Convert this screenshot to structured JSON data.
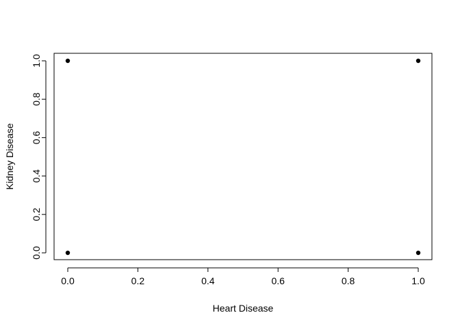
{
  "chart_data": {
    "type": "scatter",
    "title": "",
    "xlabel": "Heart Disease",
    "ylabel": "Kidney Disease",
    "xlim": [
      0.0,
      1.0
    ],
    "ylim": [
      0.0,
      1.0
    ],
    "x_ticks": [
      "0.0",
      "0.2",
      "0.4",
      "0.6",
      "0.8",
      "1.0"
    ],
    "y_ticks": [
      "0.0",
      "0.2",
      "0.4",
      "0.6",
      "0.8",
      "1.0"
    ],
    "grid": false,
    "legend": "none",
    "marker_color": "#000000",
    "points": [
      {
        "x": 0,
        "y": 0
      },
      {
        "x": 0,
        "y": 1
      },
      {
        "x": 1,
        "y": 0
      },
      {
        "x": 1,
        "y": 1
      }
    ]
  }
}
